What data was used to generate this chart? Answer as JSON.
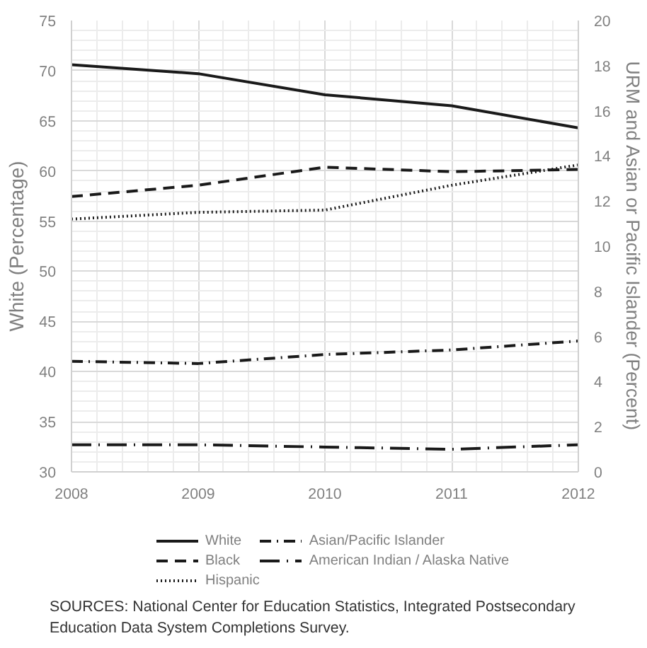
{
  "chart_data": {
    "type": "line",
    "x": [
      2008,
      2009,
      2010,
      2011,
      2012
    ],
    "xlim": [
      2008,
      2012
    ],
    "xticks": [
      2008,
      2009,
      2010,
      2011,
      2012
    ],
    "ylim": [
      30,
      75
    ],
    "yticks": [
      30,
      35,
      40,
      45,
      50,
      55,
      60,
      65,
      70,
      75
    ],
    "y2lim": [
      0,
      20
    ],
    "y2ticks": [
      0,
      2,
      4,
      6,
      8,
      10,
      12,
      14,
      16,
      18,
      20
    ],
    "ylabel": "White (Percentage)",
    "y2label": "URM and Asian or Pacific Islander (Percent)",
    "grid": true,
    "legend": "bottom",
    "series": [
      {
        "name": "White",
        "color": "#1a1a1a",
        "line_style": "solid",
        "values": [
          70.6,
          69.7,
          67.6,
          66.5,
          64.3
        ]
      },
      {
        "name": "Black",
        "color": "#1a1a1a",
        "line_style": "dashed",
        "axis": "y2",
        "values": [
          12.2,
          12.7,
          13.5,
          13.3,
          13.4
        ]
      },
      {
        "name": "Hispanic",
        "color": "#1a1a1a",
        "line_style": "dotted",
        "axis": "y2",
        "values": [
          11.2,
          11.5,
          11.6,
          12.7,
          13.6
        ]
      },
      {
        "name": "Asian/Pacific Islander",
        "color": "#1a1a1a",
        "line_style": "dashdot",
        "axis": "y2",
        "values": [
          4.9,
          4.8,
          5.2,
          5.4,
          5.8
        ]
      },
      {
        "name": "American Indian / Alaska Native",
        "color": "#1a1a1a",
        "line_style": "longdashdot",
        "axis": "y2",
        "values": [
          1.2,
          1.2,
          1.1,
          1.0,
          1.2
        ]
      }
    ],
    "annotations": [
      "SOURCES: National Center for Education Statistics, Integrated Postsecondary Education Data System Completions Survey."
    ]
  }
}
